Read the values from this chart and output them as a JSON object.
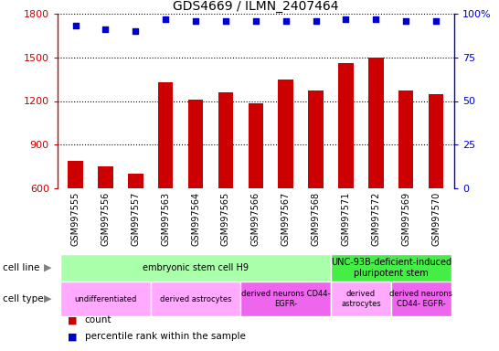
{
  "title": "GDS4669 / ILMN_2407464",
  "samples": [
    "GSM997555",
    "GSM997556",
    "GSM997557",
    "GSM997563",
    "GSM997564",
    "GSM997565",
    "GSM997566",
    "GSM997567",
    "GSM997568",
    "GSM997571",
    "GSM997572",
    "GSM997569",
    "GSM997570"
  ],
  "counts": [
    790,
    750,
    700,
    1330,
    1210,
    1260,
    1185,
    1350,
    1270,
    1460,
    1500,
    1275,
    1250
  ],
  "percentiles": [
    93,
    91,
    90,
    97,
    96,
    96,
    96,
    96,
    96,
    97,
    97,
    96,
    96
  ],
  "ylim_left": [
    600,
    1800
  ],
  "ylim_right": [
    0,
    100
  ],
  "yticks_left": [
    600,
    900,
    1200,
    1500,
    1800
  ],
  "yticks_right": [
    0,
    25,
    50,
    75,
    100
  ],
  "bar_color": "#cc0000",
  "dot_color": "#0000cc",
  "cell_line_groups": [
    {
      "label": "embryonic stem cell H9",
      "start": 0,
      "end": 9,
      "color": "#aaffaa"
    },
    {
      "label": "UNC-93B-deficient-induced\npluripotent stem",
      "start": 9,
      "end": 13,
      "color": "#44ee44"
    }
  ],
  "cell_type_groups": [
    {
      "label": "undifferentiated",
      "start": 0,
      "end": 3,
      "color": "#ffaaff"
    },
    {
      "label": "derived astrocytes",
      "start": 3,
      "end": 6,
      "color": "#ffaaff"
    },
    {
      "label": "derived neurons CD44-\nEGFR-",
      "start": 6,
      "end": 9,
      "color": "#ee66ee"
    },
    {
      "label": "derived\nastrocytes",
      "start": 9,
      "end": 11,
      "color": "#ffaaff"
    },
    {
      "label": "derived neurons\nCD44- EGFR-",
      "start": 11,
      "end": 13,
      "color": "#ee66ee"
    }
  ],
  "xtick_bg": "#cccccc",
  "plot_bg": "#ffffff",
  "legend_count_color": "#cc0000",
  "legend_dot_color": "#0000cc"
}
